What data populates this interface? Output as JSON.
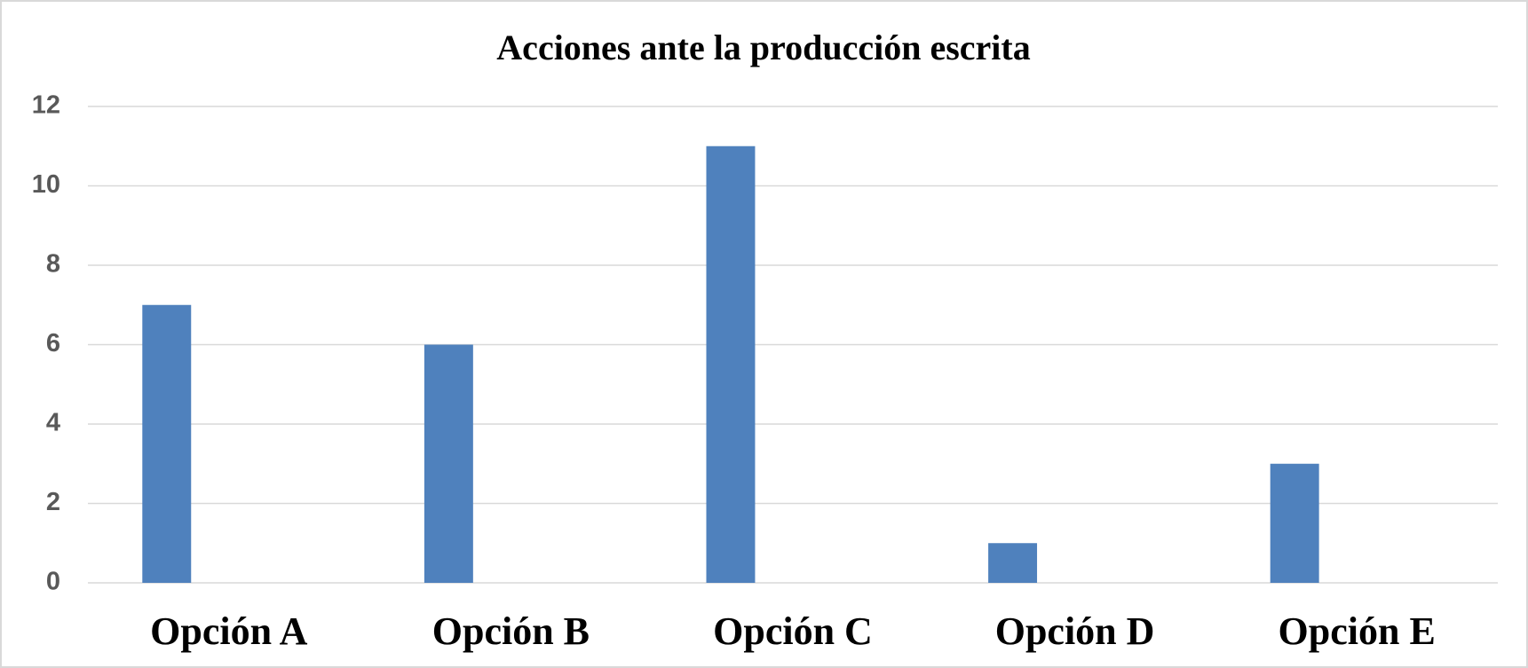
{
  "chart_data": {
    "type": "bar",
    "title": "Acciones ante la producción escrita",
    "categories": [
      "Opción A",
      "Opción B",
      "Opción C",
      "Opción D",
      "Opción E"
    ],
    "values": [
      7,
      6,
      11,
      1,
      3
    ],
    "color": "#4f81bd",
    "ylim": [
      0,
      12
    ],
    "yticks": [
      0,
      2,
      4,
      6,
      8,
      10,
      12
    ],
    "grid": true
  }
}
